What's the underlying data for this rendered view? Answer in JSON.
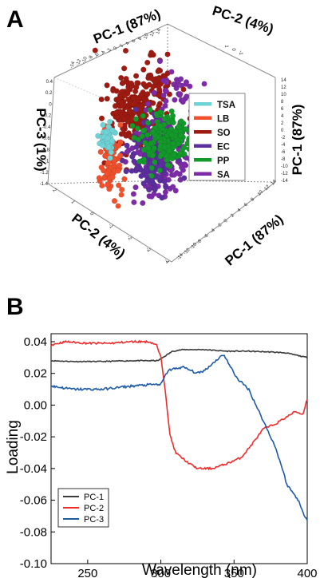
{
  "panel_a": {
    "label": "A",
    "axis_titles": {
      "pc1_top": "PC-1 (87%)",
      "pc2_top": "PC-2 (4%)",
      "pc3_left": "PC-3 (1%)",
      "pc1_right": "PC-1 (87%)",
      "pc2_bottom": "PC-2 (4%)",
      "pc1_bottom": "PC-1 (87%)"
    },
    "pc3_ticks": [
      "0.4",
      "0.2",
      "0",
      "-0.2",
      "-0.4",
      "-0.6",
      "-0.8",
      "-1",
      "-1.2",
      "-1.4"
    ],
    "pc1_ticks_top": [
      "14",
      "12",
      "10",
      "8",
      "6",
      "4",
      "2",
      "0",
      "-2",
      "-4",
      "-6",
      "-8",
      "-10",
      "-12",
      "-14"
    ],
    "pc2_ticks_top": [
      "1",
      "0",
      "-1"
    ],
    "pc1_ticks_side": [
      "14",
      "12",
      "10",
      "8",
      "6",
      "4",
      "2",
      "0",
      "-2",
      "-4",
      "-6",
      "-8",
      "-10",
      "-12",
      "-14"
    ],
    "pc2_ticks_front": [
      "2",
      "1",
      "0",
      "-1",
      "-2",
      "-3",
      "-4"
    ],
    "legend": [
      {
        "label": "TSA",
        "color": "#6fd3d6"
      },
      {
        "label": "LB",
        "color": "#f0502c"
      },
      {
        "label": "SO",
        "color": "#9e1b12"
      },
      {
        "label": "EC",
        "color": "#5b2f9e"
      },
      {
        "label": "PP",
        "color": "#139a2a"
      },
      {
        "label": "SA",
        "color": "#7e2ba8"
      }
    ]
  },
  "panel_b": {
    "label": "B"
  },
  "chart_data": {
    "type": "line",
    "xlabel": "Wavelength (nm)",
    "ylabel": "Loading",
    "xlim": [
      225,
      400
    ],
    "ylim": [
      -0.1,
      0.04
    ],
    "xticks": [
      "250",
      "300",
      "350",
      "400"
    ],
    "yticks": [
      "0.04",
      "0.02",
      "0.00",
      "-0.02",
      "-0.04",
      "-0.06",
      "-0.08",
      "-0.10"
    ],
    "legend_position": "bottom-left",
    "series": [
      {
        "name": "PC-1",
        "color": "#3a3a3a",
        "x": [
          225,
          240,
          260,
          280,
          298,
          303,
          308,
          315,
          330,
          345,
          360,
          375,
          385,
          395,
          400
        ],
        "y": [
          0.028,
          0.0275,
          0.0275,
          0.028,
          0.028,
          0.031,
          0.034,
          0.035,
          0.035,
          0.034,
          0.034,
          0.0335,
          0.033,
          0.031,
          0.03
        ]
      },
      {
        "name": "PC-2",
        "color": "#ef2b2b",
        "x": [
          225,
          235,
          250,
          265,
          280,
          292,
          297,
          300,
          303,
          306,
          310,
          318,
          325,
          335,
          345,
          355,
          362,
          370,
          378,
          385,
          392,
          397,
          400
        ],
        "y": [
          0.038,
          0.04,
          0.039,
          0.039,
          0.04,
          0.04,
          0.038,
          0.03,
          0.01,
          -0.018,
          -0.03,
          -0.036,
          -0.04,
          -0.04,
          -0.037,
          -0.033,
          -0.025,
          -0.015,
          -0.012,
          -0.008,
          -0.004,
          -0.006,
          0.004
        ]
      },
      {
        "name": "PC-3",
        "color": "#1c5aa8",
        "x": [
          225,
          240,
          260,
          280,
          295,
          300,
          305,
          315,
          325,
          330,
          335,
          340,
          343,
          347,
          352,
          360,
          368,
          373,
          378,
          383,
          386,
          390,
          394,
          397,
          400
        ],
        "y": [
          0.012,
          0.01,
          0.01,
          0.012,
          0.013,
          0.013,
          0.022,
          0.024,
          0.02,
          0.022,
          0.026,
          0.03,
          0.032,
          0.025,
          0.017,
          0.01,
          -0.006,
          -0.016,
          -0.026,
          -0.04,
          -0.05,
          -0.055,
          -0.06,
          -0.068,
          -0.072
        ]
      }
    ]
  }
}
